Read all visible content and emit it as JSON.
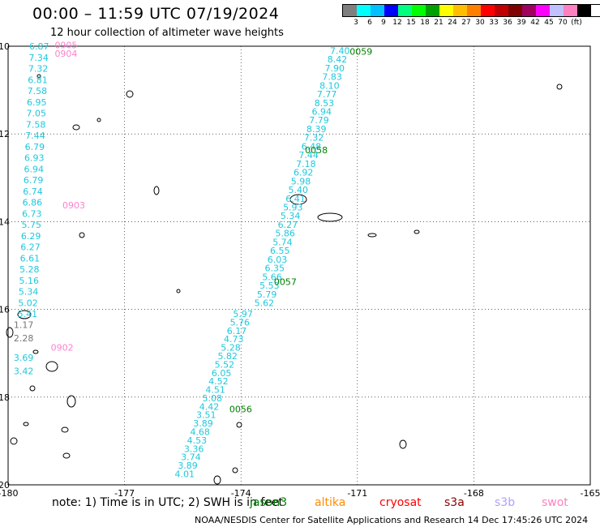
{
  "title": "00:00 – 11:59 UTC 07/19/2024",
  "subtitle": "12 hour collection of altimeter wave heights",
  "legend": {
    "colors": [
      "#7f7f7f",
      "#00ffff",
      "#00bfff",
      "#0000ff",
      "#00ff7f",
      "#00ff00",
      "#00a000",
      "#ffff00",
      "#ffbf00",
      "#ff7f00",
      "#ff0000",
      "#c00000",
      "#800000",
      "#a00060",
      "#ff00ff",
      "#c0c0ff",
      "#ff80c0",
      "#000000"
    ],
    "labels": [
      "3",
      "6",
      "9",
      "12",
      "15",
      "18",
      "21",
      "24",
      "27",
      "30",
      "33",
      "36",
      "39",
      "42",
      "45",
      "70",
      "(ft)"
    ]
  },
  "axes": {
    "x_ticks": [
      "-180",
      "-177",
      "-174",
      "-171",
      "-168",
      "-165"
    ],
    "y_ticks": [
      "-10",
      "-12",
      "-14",
      "-16",
      "-18",
      "-20"
    ],
    "lon_range": [
      -180,
      -165
    ],
    "lat_range": [
      -20,
      -10
    ]
  },
  "colors": {
    "cyan": "#1ec8dc",
    "pink": "#ff7fd0",
    "green": "#008000",
    "gray": "#777777"
  },
  "tracks": [
    {
      "values": [
        "6.87",
        "7.34",
        "7.32",
        "6.81",
        "7.58",
        "6.95",
        "7.05",
        "7.58",
        "7.44",
        "6.79",
        "6.93",
        "6.94",
        "6.79",
        "6.74",
        "6.86",
        "6.73",
        "5.75",
        "6.29",
        "6.27",
        "6.61",
        "5.28",
        "5.16",
        "5.34",
        "5.02",
        "5.41"
      ],
      "color": "cyan",
      "start": [
        -179.2,
        -10.0
      ],
      "end": [
        -179.5,
        -16.1
      ]
    },
    {
      "values": [
        "1.17",
        "2.28"
      ],
      "color": "gray",
      "start": [
        -179.6,
        -16.35
      ],
      "end": [
        -179.6,
        -16.65
      ]
    },
    {
      "values": [
        "3.69",
        "3.42"
      ],
      "color": "cyan",
      "start": [
        -179.6,
        -17.1
      ],
      "end": [
        -179.6,
        -17.4
      ]
    },
    {
      "values": [
        "7.40",
        "8.42",
        "7.90",
        "7.83",
        "8.10",
        "7.77",
        "8.53",
        "6.94",
        "7.79",
        "8.39",
        "7.32",
        "6.48",
        "7.44",
        "7.18",
        "6.92",
        "5.98",
        "5.40",
        "6.41",
        "5.93",
        "5.34",
        "6.27",
        "5.86",
        "5.74",
        "6.55",
        "6.03",
        "6.35",
        "5.66",
        "5.53",
        "5.79",
        "5.62"
      ],
      "color": "cyan",
      "start": [
        -171.45,
        -10.1
      ],
      "end": [
        -173.4,
        -15.85
      ]
    },
    {
      "values": [
        "5.97",
        "5.76",
        "6.17",
        "4.73",
        "5.28",
        "5.82",
        "5.52",
        "6.05",
        "4.52",
        "4.51",
        "5.08",
        "4.42",
        "3.51",
        "3.89",
        "4.68",
        "4.53",
        "3.36",
        "3.74",
        "3.89",
        "4.01"
      ],
      "color": "cyan",
      "start": [
        -173.95,
        -16.1
      ],
      "end": [
        -175.45,
        -19.75
      ]
    }
  ],
  "pass_labels": [
    {
      "text": "0905",
      "color": "pink",
      "lon": -178.8,
      "lat": -9.95
    },
    {
      "text": "0904",
      "color": "pink",
      "lon": -178.8,
      "lat": -10.15
    },
    {
      "text": "0903",
      "color": "pink",
      "lon": -178.6,
      "lat": -13.6
    },
    {
      "text": "0902",
      "color": "pink",
      "lon": -178.9,
      "lat": -16.85
    },
    {
      "text": "0059",
      "color": "green",
      "lon": -171.2,
      "lat": -10.1
    },
    {
      "text": "0058",
      "color": "green",
      "lon": -172.35,
      "lat": -12.35
    },
    {
      "text": "0057",
      "color": "green",
      "lon": -173.15,
      "lat": -15.35
    },
    {
      "text": "0056",
      "color": "green",
      "lon": -174.3,
      "lat": -18.25
    }
  ],
  "note": "note:  1) Time is in UTC;  2) SWH is in feet",
  "satellites": [
    {
      "name": "jason3",
      "color": "#008000"
    },
    {
      "name": "altika",
      "color": "#ff8c00"
    },
    {
      "name": "cryosat",
      "color": "#ff0000"
    },
    {
      "name": "s3a",
      "color": "#8b0000"
    },
    {
      "name": "s3b",
      "color": "#b0a0ff"
    },
    {
      "name": "swot",
      "color": "#ff80c0"
    }
  ],
  "footer": "NOAA/NESDIS Center for Satellite Applications and Research    14 Dec 17:45:26 UTC 2024"
}
